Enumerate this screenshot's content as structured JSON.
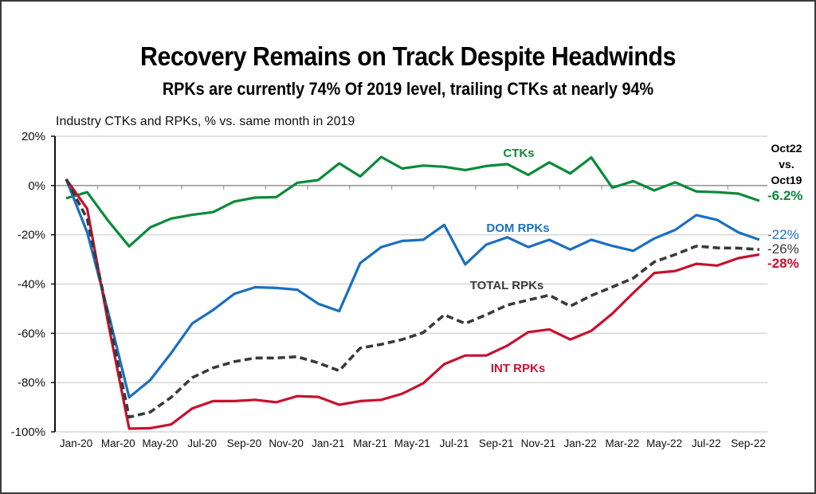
{
  "colors": {
    "ctks": "#0b8a3a",
    "dom_rpks": "#1a6fc0",
    "total_rpks": "#3a3a3a",
    "int_rpks": "#c8102e",
    "grid": "#d5d5d5",
    "zero_line": "#9a9a9a"
  },
  "chart_data": {
    "type": "line",
    "title": "Recovery Remains on Track Despite Headwinds",
    "subtitle": "RPKs are currently 74% Of 2019 level, trailing CTKs at nearly 94%",
    "ylabel": "Industry CTKs and RPKs, % vs. same month in 2019",
    "xlabel": "",
    "ylim": [
      -100,
      20
    ],
    "yticks": [
      20,
      0,
      -20,
      -40,
      -60,
      -80,
      -100
    ],
    "ytick_labels": [
      "20%",
      "0%",
      "-20%",
      "-40%",
      "-60%",
      "-80%",
      "-100%"
    ],
    "grid": true,
    "x": [
      "Jan-20",
      "Feb-20",
      "Mar-20",
      "Apr-20",
      "May-20",
      "Jun-20",
      "Jul-20",
      "Aug-20",
      "Sep-20",
      "Oct-20",
      "Nov-20",
      "Dec-20",
      "Jan-21",
      "Feb-21",
      "Mar-21",
      "Apr-21",
      "May-21",
      "Jun-21",
      "Jul-21",
      "Aug-21",
      "Sep-21",
      "Oct-21",
      "Nov-21",
      "Dec-21",
      "Jan-22",
      "Feb-22",
      "Mar-22",
      "Apr-22",
      "May-22",
      "Jun-22",
      "Jul-22",
      "Aug-22",
      "Sep-22",
      "Oct-22"
    ],
    "xtick_labels": [
      "Jan-20",
      "Mar-20",
      "May-20",
      "Jul-20",
      "Sep-20",
      "Nov-20",
      "Jan-21",
      "Mar-21",
      "May-21",
      "Jul-21",
      "Sep-21",
      "Nov-21",
      "Jan-22",
      "Mar-22",
      "May-22",
      "Jul-22",
      "Sep-22"
    ],
    "series": [
      {
        "key": "ctks",
        "name": "CTKs",
        "style": "solid",
        "end_label": "-6.2%",
        "values": [
          -5.2,
          -2.7,
          -14.3,
          -24.7,
          -17,
          -13.4,
          -11.9,
          -10.8,
          -6.5,
          -4.9,
          -4.7,
          1.1,
          2.2,
          9,
          3.7,
          11.6,
          6.9,
          8.1,
          7.6,
          6.3,
          7.9,
          8.7,
          4.3,
          9.4,
          4.9,
          11.4,
          -0.9,
          1.8,
          -2,
          1.3,
          -2.4,
          -2.7,
          -3.3,
          -6.2
        ]
      },
      {
        "key": "dom_rpks",
        "name": "DOM RPKs",
        "style": "solid",
        "end_label": "-22%",
        "values": [
          2.6,
          -19,
          -51.4,
          -86,
          -79,
          -68,
          -56,
          -50.5,
          -44,
          -41.3,
          -41.6,
          -42.3,
          -48,
          -51,
          -31.5,
          -25,
          -22.5,
          -22,
          -16,
          -32,
          -24,
          -21,
          -25,
          -22,
          -26,
          -22,
          -24.5,
          -26.5,
          -21.5,
          -18,
          -12,
          -14,
          -19,
          -22
        ]
      },
      {
        "key": "total_rpks",
        "name": "TOTAL RPKs",
        "style": "dashed",
        "end_label": "-26%",
        "values": [
          2.6,
          -13.5,
          -52.9,
          -94,
          -92,
          -86,
          -78,
          -74,
          -71.5,
          -70,
          -70,
          -69.5,
          -72,
          -75.2,
          -66,
          -64.5,
          -62.5,
          -59.7,
          -52.5,
          -56,
          -52.5,
          -48.5,
          -46.5,
          -44.5,
          -49,
          -44.7,
          -41.2,
          -37.6,
          -31,
          -28,
          -24.6,
          -25.3,
          -25.4,
          -26
        ]
      },
      {
        "key": "int_rpks",
        "name": "INT RPKs",
        "style": "solid",
        "end_label": "-28%",
        "values": [
          2.6,
          -9.4,
          -55.8,
          -98.7,
          -98.5,
          -97,
          -90.5,
          -87.5,
          -87.5,
          -87,
          -88,
          -85.5,
          -85.8,
          -89,
          -87.5,
          -87,
          -84.5,
          -80.3,
          -72.5,
          -69,
          -69,
          -65,
          -59.5,
          -58.4,
          -62.5,
          -59,
          -52,
          -43.6,
          -35.5,
          -34.7,
          -31.8,
          -32.5,
          -29.5,
          -28
        ]
      }
    ],
    "annotation": [
      "Oct22",
      "vs.",
      "Oct19"
    ]
  }
}
